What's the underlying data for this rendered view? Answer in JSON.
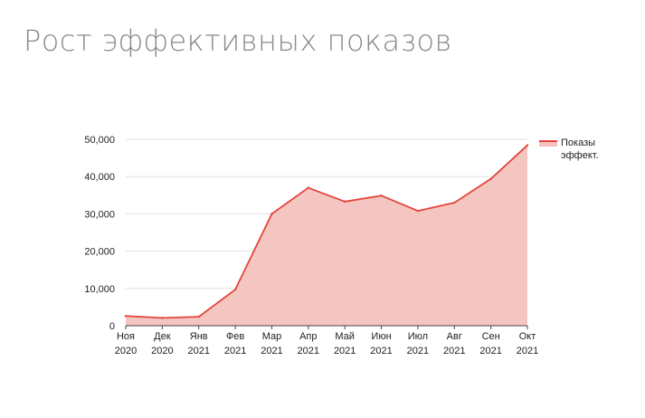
{
  "page": {
    "title": "Рост эффективных показов"
  },
  "colors": {
    "line": "#e2463b",
    "area": "#f4c2be",
    "grid": "#e0e0e0",
    "axis": "#444444",
    "title": "#8a8a8a"
  },
  "chart_data": {
    "type": "area",
    "categories": [
      [
        "Ноя",
        "2020"
      ],
      [
        "Дек",
        "2020"
      ],
      [
        "Янв",
        "2021"
      ],
      [
        "Фев",
        "2021"
      ],
      [
        "Мар",
        "2021"
      ],
      [
        "Апр",
        "2021"
      ],
      [
        "Май",
        "2021"
      ],
      [
        "Июн",
        "2021"
      ],
      [
        "Июл",
        "2021"
      ],
      [
        "Авг",
        "2021"
      ],
      [
        "Сен",
        "2021"
      ],
      [
        "Окт",
        "2021"
      ]
    ],
    "series": [
      {
        "name": "Показы эффект.",
        "legend_lines": [
          "Показы",
          "эффект."
        ],
        "values": [
          2600,
          2100,
          2400,
          9700,
          30000,
          37000,
          33300,
          34900,
          30800,
          33000,
          39400,
          48400
        ]
      }
    ],
    "ylim": [
      0,
      50000
    ],
    "yticks": [
      0,
      10000,
      20000,
      30000,
      40000,
      50000
    ],
    "ytick_labels": [
      "0",
      "10,000",
      "20,000",
      "30,000",
      "40,000",
      "50,000"
    ],
    "grid": true,
    "legend_position": "right"
  }
}
